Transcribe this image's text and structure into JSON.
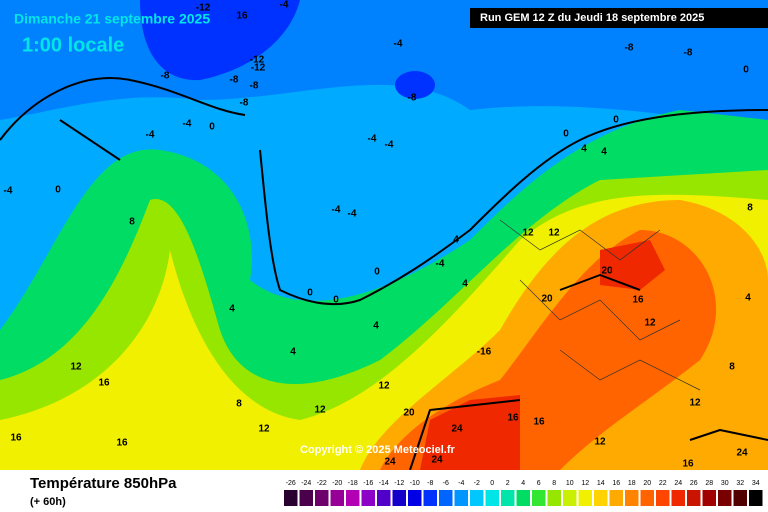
{
  "header": {
    "date": "Dimanche 21 septembre 2025",
    "time": "1:00 locale",
    "run": "Run GEM 12 Z du Jeudi 18 septembre 2025"
  },
  "footer": {
    "variable": "Température 850hPa",
    "lead": "(+ 60h)",
    "copyright": "Copyright © 2025 Meteociel.fr"
  },
  "scale": {
    "ticks": [
      -26,
      -24,
      -22,
      -20,
      -18,
      -16,
      -14,
      -12,
      -10,
      -8,
      -6,
      -4,
      -2,
      0,
      2,
      4,
      6,
      8,
      10,
      12,
      14,
      16,
      18,
      20,
      22,
      24,
      26,
      28,
      30,
      32,
      34
    ],
    "colors": [
      "#2a0030",
      "#4b004b",
      "#6e006e",
      "#960096",
      "#b400b4",
      "#8c00c8",
      "#5000c8",
      "#1400c8",
      "#0000e6",
      "#0032ff",
      "#0064ff",
      "#0096ff",
      "#00c8ff",
      "#00e6e6",
      "#00e6aa",
      "#00dc64",
      "#32e632",
      "#96e600",
      "#c8f000",
      "#f0f000",
      "#ffd200",
      "#ffaa00",
      "#ff8200",
      "#ff6400",
      "#ff4600",
      "#f02800",
      "#c81400",
      "#a00000",
      "#780000",
      "#500000",
      "#000000"
    ]
  },
  "contour_labels": [
    -12,
    16,
    -4,
    -4,
    -8,
    -8,
    0,
    -8,
    -12,
    -12,
    -8,
    -8,
    -8,
    -8,
    -4,
    0,
    -4,
    -4,
    -4,
    0,
    4,
    4,
    -4,
    0,
    8,
    -4,
    -4,
    4,
    -4,
    0,
    4,
    0,
    0,
    4,
    4,
    4,
    12,
    16,
    8,
    12,
    12,
    16,
    16,
    20,
    24,
    24,
    24,
    16,
    16,
    16,
    20,
    20,
    16,
    12,
    12,
    12,
    -16,
    12,
    12,
    12,
    24,
    8,
    4,
    8,
    0
  ]
}
